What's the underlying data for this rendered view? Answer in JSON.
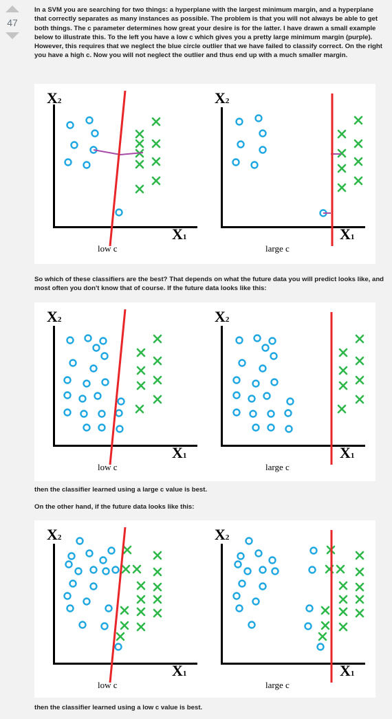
{
  "votes": {
    "count": "47"
  },
  "paragraphs": {
    "intro": "In a SVM you are searching for two things: a hyperplane with the largest minimum margin, and a hyperplane that correctly separates as many instances as possible. The problem is that you will not always be able to get both things. The c parameter determines how great your desire is for the latter. I have drawn a small example below to illustrate this. To the left you have a low c which gives you a pretty large minimum margin (purple). However, this requires that we neglect the blue circle outlier that we have failed to classify correct. On the right you have a high c. Now you will not neglect the outlier and thus end up with a much smaller margin.",
    "which": "So which of these classifiers are the best? That depends on what the future data you will predict looks like, and most often you don't know that of course. If the future data looks like this:",
    "large_best": "then the classifier learned using a large c value is best.",
    "other_hand": "On the other hand, if the future data looks like this:",
    "low_best": "then the classifier learned using a low c value is best."
  },
  "figure_labels": {
    "x2": "X",
    "x2_sub": "2",
    "x1": "X",
    "x1_sub": "1",
    "low_c": "low c",
    "large_c": "large c"
  },
  "colors": {
    "circle": "#1ea7e1",
    "cross": "#2eb84a",
    "boundary": "#e8262a",
    "margin": "#a64ca6",
    "axis": "#000000"
  }
}
